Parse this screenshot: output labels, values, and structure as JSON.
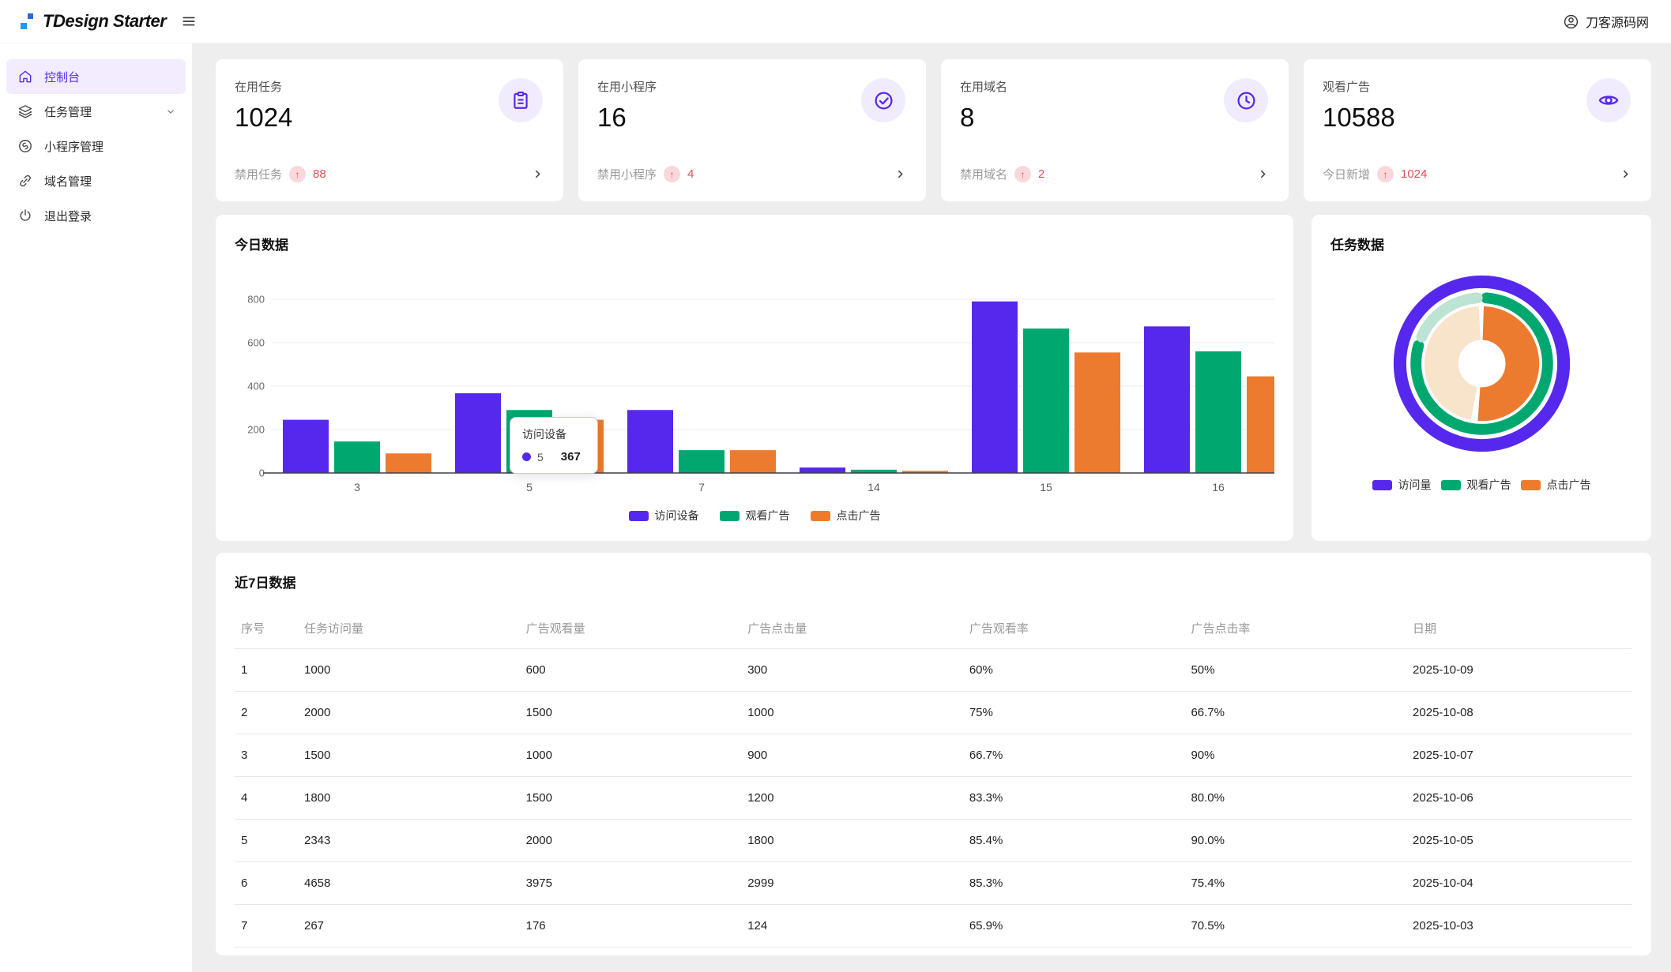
{
  "header": {
    "title": "TDesign Starter",
    "user_name": "刀客源码网"
  },
  "sidebar": {
    "items": [
      {
        "label": "控制台",
        "icon": "home-icon",
        "active": true
      },
      {
        "label": "任务管理",
        "icon": "layers-icon",
        "expandable": true
      },
      {
        "label": "小程序管理",
        "icon": "miniprogram-icon"
      },
      {
        "label": "域名管理",
        "icon": "link-icon"
      },
      {
        "label": "退出登录",
        "icon": "power-icon"
      }
    ]
  },
  "stat_cards": [
    {
      "label": "在用任务",
      "value": "1024",
      "icon": "clipboard-icon",
      "footer_label": "禁用任务",
      "trend_arrow": "↑",
      "trend_value": "88"
    },
    {
      "label": "在用小程序",
      "value": "16",
      "icon": "check-circle-icon",
      "footer_label": "禁用小程序",
      "trend_arrow": "↑",
      "trend_value": "4"
    },
    {
      "label": "在用域名",
      "value": "8",
      "icon": "clock-icon",
      "footer_label": "禁用域名",
      "trend_arrow": "↑",
      "trend_value": "2"
    },
    {
      "label": "观看广告",
      "value": "10588",
      "icon": "eye-icon",
      "footer_label": "今日新增",
      "trend_arrow": "↑",
      "trend_value": "1024"
    }
  ],
  "colors": {
    "brand": "#5628ee",
    "success": "#00a870",
    "warning": "#ed7b2f",
    "error": "#e34d59",
    "mint": "#bce3d3",
    "peach": "#f8e3cb"
  },
  "chart_data": [
    {
      "type": "bar",
      "title": "今日数据",
      "categories": [
        "3",
        "5",
        "7",
        "14",
        "15",
        "16"
      ],
      "series": [
        {
          "name": "访问设备",
          "color": "#5628ee",
          "values": [
            245,
            367,
            290,
            25,
            790,
            675
          ]
        },
        {
          "name": "观看广告",
          "color": "#00a870",
          "values": [
            145,
            290,
            105,
            15,
            665,
            560
          ]
        },
        {
          "name": "点击广告",
          "color": "#ed7b2f",
          "values": [
            90,
            245,
            105,
            10,
            555,
            445
          ]
        }
      ],
      "xlabel": "",
      "ylabel": "",
      "ylim": [
        0,
        800
      ],
      "yticks": [
        0,
        200,
        400,
        600,
        800
      ],
      "grid": true,
      "legend_position": "bottom",
      "tooltip": {
        "title": "访问设备",
        "dot_color": "#5628ee",
        "label": "5",
        "value": "367"
      }
    },
    {
      "type": "pie",
      "title": "任务数据",
      "style": "nested-rings",
      "rings": [
        {
          "name": "访问量",
          "segments": [
            {
              "color": "#5628ee",
              "from": 0,
              "to": 360
            }
          ]
        },
        {
          "name": "观看广告",
          "segments": [
            {
              "color": "#00a870",
              "from": 4,
              "to": 286
            },
            {
              "color": "#bce3d3",
              "from": 294,
              "to": 356
            }
          ]
        },
        {
          "name": "点击广告",
          "segments": [
            {
              "color": "#ed7b2f",
              "from": 2,
              "to": 184
            },
            {
              "color": "#f8e3cb",
              "from": 191,
              "to": 357
            }
          ]
        }
      ],
      "legend": [
        {
          "label": "访问量",
          "color": "#5628ee"
        },
        {
          "label": "观看广告",
          "color": "#00a870"
        },
        {
          "label": "点击广告",
          "color": "#ed7b2f"
        }
      ],
      "legend_position": "bottom"
    }
  ],
  "table": {
    "title": "近7日数据",
    "columns": [
      "序号",
      "任务访问量",
      "广告观看量",
      "广告点击量",
      "广告观看率",
      "广告点击率",
      "日期"
    ],
    "rows": [
      [
        "1",
        "1000",
        "600",
        "300",
        "60%",
        "50%",
        "2025-10-09"
      ],
      [
        "2",
        "2000",
        "1500",
        "1000",
        "75%",
        "66.7%",
        "2025-10-08"
      ],
      [
        "3",
        "1500",
        "1000",
        "900",
        "66.7%",
        "90%",
        "2025-10-07"
      ],
      [
        "4",
        "1800",
        "1500",
        "1200",
        "83.3%",
        "80.0%",
        "2025-10-06"
      ],
      [
        "5",
        "2343",
        "2000",
        "1800",
        "85.4%",
        "90.0%",
        "2025-10-05"
      ],
      [
        "6",
        "4658",
        "3975",
        "2999",
        "85.3%",
        "75.4%",
        "2025-10-04"
      ],
      [
        "7",
        "267",
        "176",
        "124",
        "65.9%",
        "70.5%",
        "2025-10-03"
      ]
    ]
  }
}
